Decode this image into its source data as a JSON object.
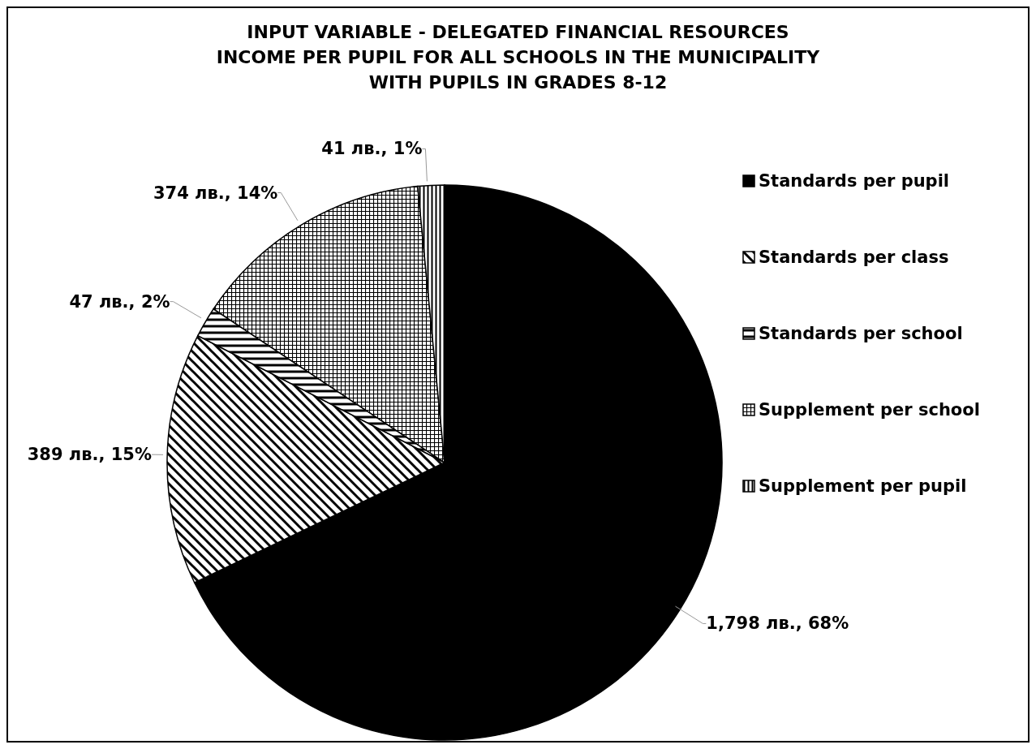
{
  "chart_data": {
    "type": "pie",
    "title": "INPUT VARIABLE - DELEGATED FINANCIAL RESOURCES\nINCOME PER PUPIL FOR ALL SCHOOLS IN THE MUNICIPALITY\nWITH PUPILS IN GRADES 8-12",
    "categories": [
      "Standards per pupil",
      "Standards per class",
      "Standards per school",
      "Supplement per school",
      "Supplement per pupil"
    ],
    "values": [
      1798,
      389,
      47,
      374,
      41
    ],
    "colors": [
      "#000000",
      "#000000",
      "#000000",
      "#000000",
      "#000000"
    ],
    "value_labels": [
      "1,798 лв., 68%",
      "389 лв., 15%",
      "47 лв., 2%",
      "374 лв., 14%",
      "41 лв., 1%"
    ],
    "legend": "right"
  }
}
